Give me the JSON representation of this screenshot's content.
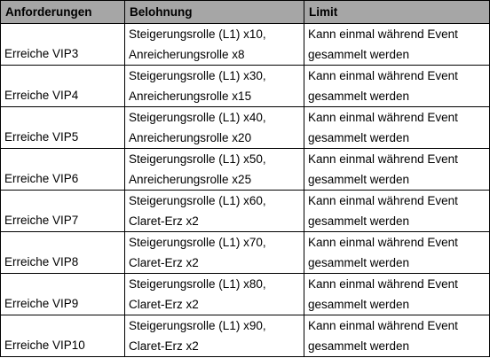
{
  "table": {
    "headers": [
      "Anforderungen",
      "Belohnung",
      "Limit"
    ],
    "rows": [
      {
        "requirement": "Erreiche VIP3",
        "reward_line1": "Steigerungsrolle (L1) x10,",
        "reward_line2": "Anreicherungsrolle x8",
        "limit_line1": "Kann einmal während Event",
        "limit_line2": "gesammelt werden"
      },
      {
        "requirement": "Erreiche VIP4",
        "reward_line1": "Steigerungsrolle (L1) x30,",
        "reward_line2": "Anreicherungsrolle x15",
        "limit_line1": "Kann einmal während Event",
        "limit_line2": "gesammelt werden"
      },
      {
        "requirement": "Erreiche VIP5",
        "reward_line1": "Steigerungsrolle (L1) x40,",
        "reward_line2": "Anreicherungsrolle x20",
        "limit_line1": "Kann einmal während Event",
        "limit_line2": "gesammelt werden"
      },
      {
        "requirement": "Erreiche VIP6",
        "reward_line1": "Steigerungsrolle (L1) x50,",
        "reward_line2": "Anreicherungsrolle x25",
        "limit_line1": "Kann einmal während Event",
        "limit_line2": "gesammelt werden"
      },
      {
        "requirement": "Erreiche VIP7",
        "reward_line1": "Steigerungsrolle (L1) x60,",
        "reward_line2": "Claret-Erz x2",
        "limit_line1": "Kann einmal während Event",
        "limit_line2": "gesammelt werden"
      },
      {
        "requirement": "Erreiche VIP8",
        "reward_line1": "Steigerungsrolle (L1) x70,",
        "reward_line2": "Claret-Erz x2",
        "limit_line1": "Kann einmal während Event",
        "limit_line2": "gesammelt werden"
      },
      {
        "requirement": "Erreiche VIP9",
        "reward_line1": "Steigerungsrolle (L1) x80,",
        "reward_line2": "Claret-Erz x2",
        "limit_line1": "Kann einmal während Event",
        "limit_line2": "gesammelt werden"
      },
      {
        "requirement": "Erreiche VIP10",
        "reward_line1": "Steigerungsrolle (L1) x90,",
        "reward_line2": "Claret-Erz x2",
        "limit_line1": "Kann einmal während Event",
        "limit_line2": "gesammelt werden"
      }
    ]
  },
  "colors": {
    "header_background": "#a6a6a6",
    "border": "#000000",
    "text": "#000000"
  }
}
